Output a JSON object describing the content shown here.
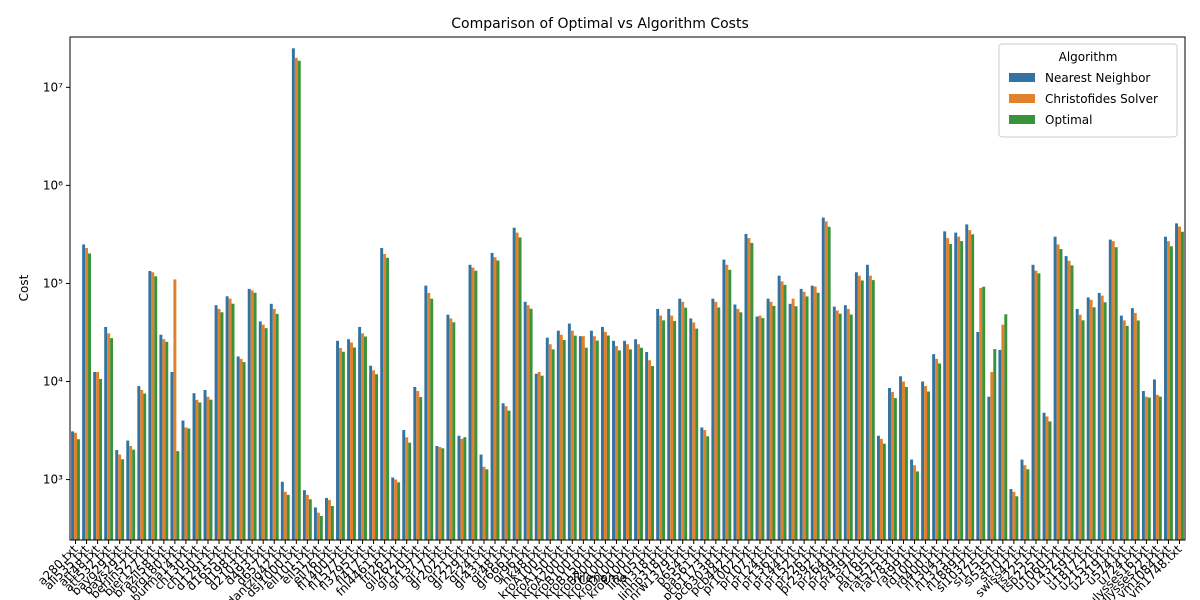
{
  "chart_data": {
    "type": "bar",
    "title": "Comparison of Optimal vs Algorithm Costs",
    "x_label": "Filename",
    "y_label": "Cost",
    "log_scale": true,
    "legend_title": "Algorithm",
    "legend_position": "upper right",
    "categories": [
      "a280.txt",
      "ali535.txt",
      "att48.txt",
      "att532.txt",
      "bayg29.txt",
      "bays29.txt",
      "berlin52.txt",
      "bier127.txt",
      "brazil58.txt",
      "brg180.txt",
      "burma14.txt",
      "ch130.txt",
      "ch150.txt",
      "d1291.txt",
      "d1655.txt",
      "d198.txt",
      "d2103.txt",
      "d493.txt",
      "d657.txt",
      "dantzig42.txt",
      "dsj1000.txt",
      "eil101.txt",
      "eil51.txt",
      "eil76.txt",
      "fl1400.txt",
      "fl1577.txt",
      "fl3795.txt",
      "fl417.txt",
      "fnl4461.txt",
      "fri26.txt",
      "gil262.txt",
      "gr120.txt",
      "gr137.txt",
      "gr17.txt",
      "gr202.txt",
      "gr21.txt",
      "gr229.txt",
      "gr24.txt",
      "gr431.txt",
      "gr48.txt",
      "gr666.txt",
      "gr96.txt",
      "hk48.txt",
      "kroA100.txt",
      "kroA150.txt",
      "kroA200.txt",
      "kroB100.txt",
      "kroB150.txt",
      "kroB200.txt",
      "kroC100.txt",
      "kroD100.txt",
      "kroE100.txt",
      "lin105.txt",
      "lin318.txt",
      "linhp318.txt",
      "nrw1379.txt",
      "p654.txt",
      "pa561.txt",
      "pcb1173.txt",
      "pcb3038.txt",
      "pcb442.txt",
      "pr1002.txt",
      "pr107.txt",
      "pr124.txt",
      "pr136.txt",
      "pr144.txt",
      "pr152.txt",
      "pr226.txt",
      "pr2392.txt",
      "pr264.txt",
      "pr299.txt",
      "pr439.txt",
      "pr76.txt",
      "rat195.txt",
      "rat575.txt",
      "rat783.txt",
      "rat99.txt",
      "rd100.txt",
      "rd400.txt",
      "rl1304.txt",
      "rl1323.txt",
      "rl1889.txt",
      "si1032.txt",
      "si175.txt",
      "si535.txt",
      "st70.txt",
      "swiss42.txt",
      "ts225.txt",
      "tsp225.txt",
      "u1060.txt",
      "u1432.txt",
      "u159.txt",
      "u1817.txt",
      "u2152.txt",
      "u2319.txt",
      "u574.txt",
      "u724.txt",
      "ulysses16.txt",
      "ulysses22.txt",
      "vm1084.txt",
      "vm1748.txt"
    ],
    "series": [
      {
        "name": "Nearest Neighbor",
        "color": "#3274a1",
        "values": [
          3100,
          250000,
          12500,
          36000,
          2000,
          2500,
          8980,
          134000,
          30000,
          12500,
          4000,
          7600,
          8200,
          60000,
          74000,
          18000,
          88000,
          41000,
          62000,
          950,
          25000000,
          780,
          520,
          650,
          26000,
          27000,
          36000,
          14500,
          230000,
          1050,
          3200,
          8800,
          95000,
          2200,
          48000,
          2800,
          155000,
          1800,
          205000,
          6000,
          370000,
          65000,
          12000,
          28000,
          33000,
          39000,
          29000,
          33000,
          36000,
          26000,
          26000,
          27000,
          20000,
          55000,
          55000,
          70000,
          44000,
          3400,
          70000,
          175000,
          61000,
          320000,
          46000,
          70000,
          120000,
          62000,
          88000,
          95000,
          470000,
          58000,
          60000,
          130000,
          155000,
          2800,
          8600,
          11300,
          1600,
          10000,
          19000,
          340000,
          330000,
          400000,
          32000,
          7000,
          21000,
          800,
          1600,
          155000,
          4800,
          300000,
          190000,
          55000,
          72000,
          80000,
          280000,
          47000,
          56000,
          8000,
          10500,
          300000,
          410000
        ]
      },
      {
        "name": "Christofides Solver",
        "color": "#e1812c",
        "values": [
          3000,
          230000,
          12500,
          31000,
          1800,
          2200,
          8200,
          130000,
          27000,
          110000,
          3400,
          6500,
          7000,
          55000,
          70000,
          17000,
          85000,
          38000,
          55000,
          750,
          20000000,
          700,
          460,
          620,
          22000,
          25000,
          31000,
          13000,
          200000,
          1000,
          2700,
          8000,
          80000,
          2150,
          44000,
          2600,
          145000,
          1350,
          185000,
          5600,
          330000,
          60000,
          12500,
          24000,
          30000,
          33000,
          29000,
          29000,
          32000,
          23000,
          24000,
          24000,
          16500,
          47000,
          47000,
          65000,
          40000,
          3200,
          65000,
          155000,
          55000,
          290000,
          47000,
          65000,
          105000,
          70000,
          82000,
          93000,
          430000,
          53000,
          55000,
          120000,
          120000,
          2600,
          7800,
          10000,
          1400,
          9000,
          17000,
          290000,
          300000,
          350000,
          90000,
          12500,
          38000,
          750,
          1400,
          135000,
          4400,
          250000,
          170000,
          48000,
          68000,
          75000,
          270000,
          42000,
          50000,
          7000,
          7300,
          270000,
          380000
        ]
      },
      {
        "name": "Optimal",
        "color": "#3a923a",
        "values": [
          2579,
          202339,
          10628,
          27686,
          1610,
          2020,
          7542,
          118282,
          25395,
          1950,
          3323,
          6110,
          6528,
          50801,
          62128,
          15780,
          80450,
          35002,
          48912,
          699,
          18659688,
          629,
          426,
          538,
          20127,
          22249,
          28772,
          11861,
          182566,
          937,
          2378,
          6942,
          69853,
          2085,
          40160,
          2707,
          134602,
          1272,
          171414,
          5046,
          294358,
          55209,
          11461,
          21282,
          26524,
          29368,
          22141,
          26130,
          29437,
          20749,
          21294,
          22068,
          14379,
          42029,
          41345,
          56638,
          34643,
          2763,
          56892,
          137694,
          50778,
          259045,
          44303,
          59030,
          96772,
          58537,
          73682,
          80369,
          378032,
          49135,
          48191,
          107217,
          108159,
          2323,
          6773,
          8806,
          1211,
          7910,
          15281,
          252948,
          270199,
          316536,
          92650,
          21407,
          48450,
          675,
          1273,
          126643,
          3916,
          224094,
          152970,
          42080,
          57201,
          64253,
          234256,
          36905,
          41910,
          6859,
          7013,
          239297,
          336556
        ]
      }
    ],
    "ylim": [
      242,
      32600000
    ],
    "yticks": [
      {
        "value": 1000,
        "label": "10³"
      },
      {
        "value": 10000,
        "label": "10⁴"
      },
      {
        "value": 100000,
        "label": "10⁵"
      },
      {
        "value": 1000000,
        "label": "10⁶"
      },
      {
        "value": 10000000,
        "label": "10⁷"
      }
    ]
  }
}
